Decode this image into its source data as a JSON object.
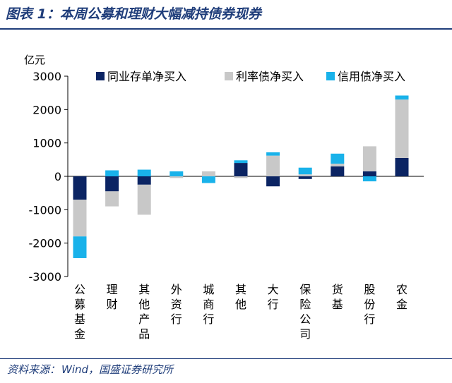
{
  "header": {
    "title": "图表 1：本周公募和理财大幅减持债券现券"
  },
  "footer": {
    "source_label": "资料来源：",
    "source_value": "Wind，国盛证券研究所"
  },
  "colors": {
    "brand": "#1f3d7a",
    "interbank_cd": "#0b2463",
    "rate_bonds": "#c8c8c8",
    "credit_bonds": "#19b2ea"
  },
  "chart_data": {
    "type": "bar",
    "stacked": true,
    "title": "",
    "xlabel": "",
    "ylabel": "亿元",
    "ylim": [
      -3000,
      3000
    ],
    "yticks": [
      3000,
      2000,
      1000,
      0,
      -1000,
      -2000,
      -3000
    ],
    "grid": false,
    "legend_position": "top",
    "categories": [
      "公募基金",
      "理财",
      "其他产品",
      "外资行",
      "城商行",
      "其他",
      "大行",
      "保险公司",
      "货基",
      "股份行",
      "农金"
    ],
    "series": [
      {
        "name": "同业存单净买入",
        "values": [
          -700,
          -450,
          -250,
          0,
          0,
          400,
          -300,
          -80,
          300,
          150,
          550
        ]
      },
      {
        "name": "利率债净买入",
        "values": [
          -1100,
          -450,
          -900,
          -50,
          150,
          -50,
          620,
          60,
          80,
          750,
          1750
        ]
      },
      {
        "name": "信用债净买入",
        "values": [
          -650,
          180,
          200,
          150,
          -200,
          80,
          100,
          200,
          300,
          -150,
          120
        ]
      }
    ]
  }
}
